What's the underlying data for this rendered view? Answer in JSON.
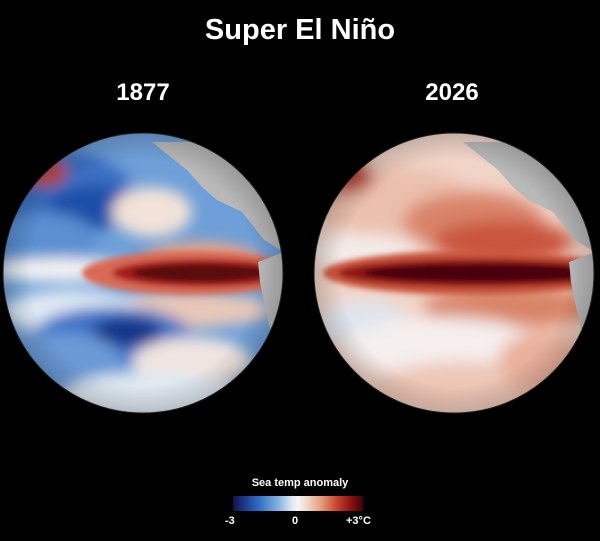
{
  "title": "Super El Niño",
  "panels": [
    {
      "year": "1877"
    },
    {
      "year": "2026"
    }
  ],
  "legend": {
    "title": "Sea temp anomaly",
    "min_label": "-3",
    "mid_label": "0",
    "max_label": "+3°C",
    "min": -3,
    "max": 3
  },
  "colors": {
    "background": "#000000",
    "land": "#b9b9b9",
    "cold_deep": "#1f3a8a",
    "cold": "#5f95d4",
    "neutral": "#f2f2f2",
    "warm": "#e4957a",
    "hot": "#c0392b",
    "hot_deep": "#5a0a0e"
  }
}
